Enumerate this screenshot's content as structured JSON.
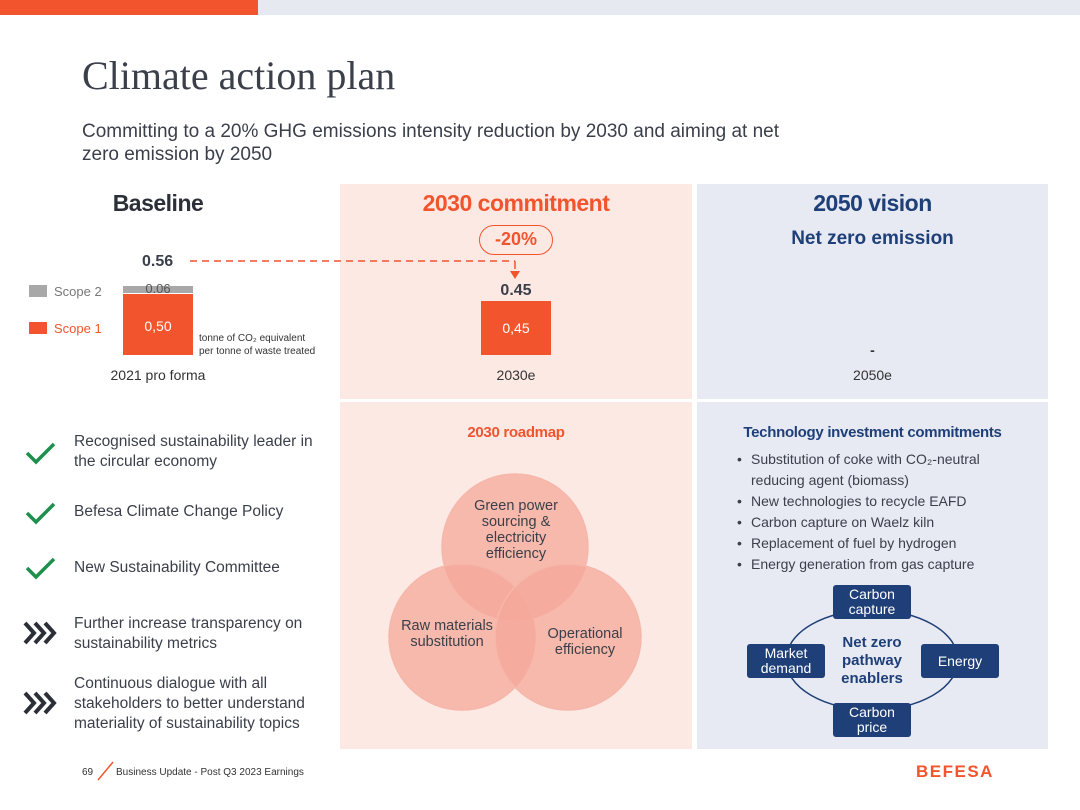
{
  "page": {
    "title": "Climate action plan",
    "subtitle": "Committing to a 20% GHG emissions intensity reduction by 2030 and aiming at net zero emission by 2050"
  },
  "colors": {
    "accent": "#f2542d",
    "navy": "#1f3f78",
    "scope2_grey": "#a8a8a8",
    "check_green": "#1e8f4d"
  },
  "baseline": {
    "heading": "Baseline",
    "total": "0.56",
    "scope2_value": "0.06",
    "scope1_value": "0,50",
    "legend_scope2": "Scope 2",
    "legend_scope1": "Scope 1",
    "unit_line1": "tonne of CO₂ equivalent",
    "unit_line2": "per tonne of waste treated",
    "year_label": "2021 pro forma"
  },
  "commitment_2030": {
    "heading": "2030 commitment",
    "reduction": "-20%",
    "total": "0.45",
    "bar_value": "0,45",
    "year_label": "2030e"
  },
  "vision_2050": {
    "heading": "2050 vision",
    "subheading": "Net zero emission",
    "value": "-",
    "year_label": "2050e"
  },
  "checklist": [
    {
      "icon": "check-icon",
      "text": "Recognised sustainability leader in the circular economy"
    },
    {
      "icon": "check-icon",
      "text": "Befesa Climate Change Policy"
    },
    {
      "icon": "check-icon",
      "text": "New Sustainability Committee"
    },
    {
      "icon": "chevrons-icon",
      "text": "Further increase transparency on sustainability metrics"
    },
    {
      "icon": "chevrons-icon",
      "text": "Continuous dialogue with all stakeholders to better understand materiality of sustainability topics"
    }
  ],
  "roadmap": {
    "heading": "2030 roadmap",
    "circle_top": "Green power sourcing & electricity efficiency",
    "circle_left": "Raw materials substitution",
    "circle_right": "Operational efficiency"
  },
  "tech": {
    "heading": "Technology investment commitments",
    "bullets": [
      "Substitution of coke with CO₂-neutral reducing agent (biomass)",
      "New technologies to recycle EAFD",
      "Carbon capture on Waelz kiln",
      "Replacement of fuel by hydrogen",
      "Energy generation from gas capture"
    ],
    "enablers_center": "Net zero pathway enablers",
    "enabler_top": "Carbon capture",
    "enabler_left": "Market demand",
    "enabler_right": "Energy",
    "enabler_bottom": "Carbon price"
  },
  "footer": {
    "page_number": "69",
    "text": "Business Update - Post Q3 2023 Earnings",
    "brand": "BEFESA"
  }
}
